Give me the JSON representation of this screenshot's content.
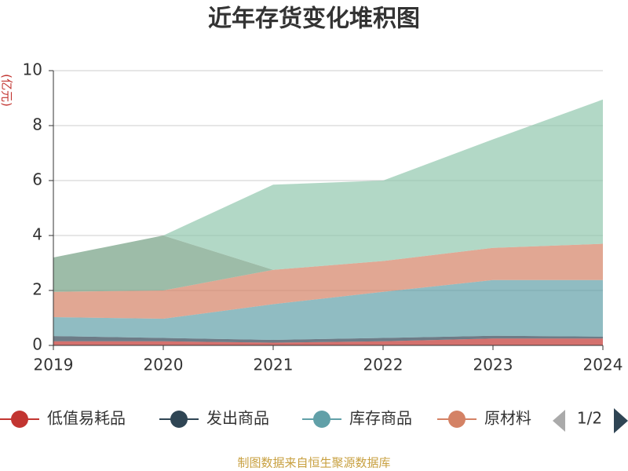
{
  "chart_data": {
    "type": "stacked_area",
    "title": "近年存货变化堆积图",
    "y_label": "(亿元)",
    "source": "制图数据来自恒生聚源数据库",
    "legend_page": "1/2",
    "x": [
      "2019",
      "2020",
      "2021",
      "2022",
      "2023",
      "2024"
    ],
    "ylim": [
      0,
      10
    ],
    "yticks": [
      0,
      2,
      4,
      6,
      8,
      10
    ],
    "grid": true,
    "series": [
      {
        "name": "低值易耗品",
        "color": "#c23531",
        "values": [
          0.15,
          0.15,
          0.1,
          0.15,
          0.25,
          0.25
        ]
      },
      {
        "name": "发出商品",
        "color": "#2f4554",
        "values": [
          0.19,
          0.12,
          0.1,
          0.12,
          0.1,
          0.07
        ]
      },
      {
        "name": "库存商品",
        "color": "#61a0a8",
        "values": [
          0.69,
          0.7,
          1.3,
          1.68,
          2.03,
          2.06
        ]
      },
      {
        "name": "原材料",
        "color": "#d48265",
        "values": [
          0.92,
          1.03,
          1.25,
          1.12,
          1.17,
          1.32
        ]
      },
      {
        "color": "#749f83",
        "values": [
          1.25,
          2.0,
          0,
          0,
          0,
          0
        ]
      },
      {
        "color": "#91c7ae",
        "values": [
          0,
          0,
          3.1,
          2.93,
          3.95,
          5.25
        ]
      }
    ]
  }
}
